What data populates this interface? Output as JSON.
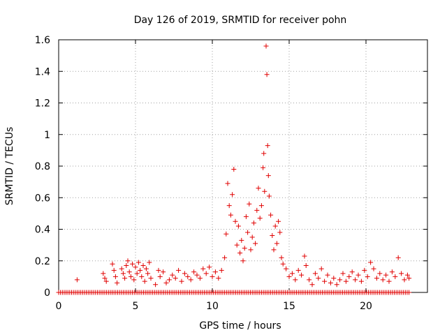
{
  "chart_data": {
    "type": "scatter",
    "title": "Day 126 of 2019, SRMTID for receiver pohn",
    "xlabel": "GPS time / hours",
    "ylabel": "SRMTID / TECUs",
    "xlim": [
      0,
      24
    ],
    "ylim": [
      0,
      1.6
    ],
    "xticks": [
      0,
      5,
      10,
      15,
      20
    ],
    "xtick_labels": [
      "0",
      "5",
      "10",
      "15",
      "20"
    ],
    "yticks": [
      0,
      0.2,
      0.4,
      0.6,
      0.8,
      1.0,
      1.2,
      1.4,
      1.6
    ],
    "ytick_labels": [
      "0",
      "0.2",
      "0.4",
      "0.6",
      "0.8",
      "1",
      "1.2",
      "1.4",
      "1.6"
    ],
    "grid": true,
    "marker": "+",
    "color": "#e00000",
    "series": [
      {
        "name": "SRMTID",
        "points": [
          [
            1.2,
            0.08
          ],
          [
            2.9,
            0.12
          ],
          [
            3.0,
            0.09
          ],
          [
            3.1,
            0.07
          ],
          [
            3.5,
            0.18
          ],
          [
            3.6,
            0.14
          ],
          [
            3.7,
            0.1
          ],
          [
            3.8,
            0.06
          ],
          [
            4.1,
            0.15
          ],
          [
            4.2,
            0.12
          ],
          [
            4.3,
            0.09
          ],
          [
            4.4,
            0.17
          ],
          [
            4.5,
            0.2
          ],
          [
            4.6,
            0.13
          ],
          [
            4.7,
            0.1
          ],
          [
            4.8,
            0.18
          ],
          [
            4.9,
            0.08
          ],
          [
            5.0,
            0.16
          ],
          [
            5.1,
            0.12
          ],
          [
            5.2,
            0.19
          ],
          [
            5.3,
            0.14
          ],
          [
            5.4,
            0.1
          ],
          [
            5.5,
            0.17
          ],
          [
            5.6,
            0.07
          ],
          [
            5.7,
            0.15
          ],
          [
            5.8,
            0.12
          ],
          [
            5.9,
            0.19
          ],
          [
            6.0,
            0.09
          ],
          [
            6.3,
            0.05
          ],
          [
            6.5,
            0.14
          ],
          [
            6.6,
            0.1
          ],
          [
            6.8,
            0.13
          ],
          [
            7.0,
            0.06
          ],
          [
            7.2,
            0.08
          ],
          [
            7.4,
            0.11
          ],
          [
            7.6,
            0.09
          ],
          [
            7.8,
            0.14
          ],
          [
            8.0,
            0.07
          ],
          [
            8.2,
            0.12
          ],
          [
            8.4,
            0.1
          ],
          [
            8.6,
            0.08
          ],
          [
            8.8,
            0.13
          ],
          [
            9.0,
            0.11
          ],
          [
            9.2,
            0.09
          ],
          [
            9.4,
            0.15
          ],
          [
            9.6,
            0.12
          ],
          [
            9.8,
            0.16
          ],
          [
            10.0,
            0.1
          ],
          [
            10.2,
            0.13
          ],
          [
            10.4,
            0.09
          ],
          [
            10.6,
            0.14
          ],
          [
            10.8,
            0.22
          ],
          [
            10.9,
            0.37
          ],
          [
            11.0,
            0.69
          ],
          [
            11.1,
            0.55
          ],
          [
            11.2,
            0.49
          ],
          [
            11.3,
            0.62
          ],
          [
            11.4,
            0.78
          ],
          [
            11.5,
            0.45
          ],
          [
            11.6,
            0.3
          ],
          [
            11.7,
            0.42
          ],
          [
            11.8,
            0.25
          ],
          [
            11.9,
            0.33
          ],
          [
            12.0,
            0.2
          ],
          [
            12.1,
            0.28
          ],
          [
            12.2,
            0.48
          ],
          [
            12.3,
            0.38
          ],
          [
            12.4,
            0.56
          ],
          [
            12.5,
            0.27
          ],
          [
            12.6,
            0.35
          ],
          [
            12.7,
            0.44
          ],
          [
            12.8,
            0.31
          ],
          [
            12.9,
            0.52
          ],
          [
            13.0,
            0.66
          ],
          [
            13.1,
            0.47
          ],
          [
            13.2,
            0.55
          ],
          [
            13.3,
            0.79
          ],
          [
            13.35,
            0.88
          ],
          [
            13.4,
            0.64
          ],
          [
            13.5,
            1.56
          ],
          [
            13.55,
            1.38
          ],
          [
            13.6,
            0.93
          ],
          [
            13.65,
            0.74
          ],
          [
            13.7,
            0.61
          ],
          [
            13.8,
            0.49
          ],
          [
            13.9,
            0.36
          ],
          [
            14.0,
            0.27
          ],
          [
            14.1,
            0.42
          ],
          [
            14.2,
            0.31
          ],
          [
            14.3,
            0.45
          ],
          [
            14.4,
            0.38
          ],
          [
            14.5,
            0.22
          ],
          [
            14.6,
            0.18
          ],
          [
            14.8,
            0.15
          ],
          [
            15.0,
            0.1
          ],
          [
            15.2,
            0.12
          ],
          [
            15.4,
            0.08
          ],
          [
            15.6,
            0.14
          ],
          [
            15.8,
            0.11
          ],
          [
            16.0,
            0.23
          ],
          [
            16.1,
            0.17
          ],
          [
            16.3,
            0.08
          ],
          [
            16.5,
            0.05
          ],
          [
            16.7,
            0.12
          ],
          [
            16.9,
            0.09
          ],
          [
            17.1,
            0.15
          ],
          [
            17.3,
            0.07
          ],
          [
            17.5,
            0.11
          ],
          [
            17.7,
            0.06
          ],
          [
            17.9,
            0.09
          ],
          [
            18.1,
            0.05
          ],
          [
            18.3,
            0.08
          ],
          [
            18.5,
            0.12
          ],
          [
            18.7,
            0.07
          ],
          [
            18.9,
            0.1
          ],
          [
            19.1,
            0.13
          ],
          [
            19.3,
            0.08
          ],
          [
            19.5,
            0.11
          ],
          [
            19.7,
            0.07
          ],
          [
            19.9,
            0.14
          ],
          [
            20.1,
            0.1
          ],
          [
            20.3,
            0.19
          ],
          [
            20.5,
            0.15
          ],
          [
            20.7,
            0.09
          ],
          [
            20.9,
            0.12
          ],
          [
            21.1,
            0.08
          ],
          [
            21.3,
            0.11
          ],
          [
            21.5,
            0.07
          ],
          [
            21.7,
            0.13
          ],
          [
            21.9,
            0.1
          ],
          [
            22.1,
            0.22
          ],
          [
            22.3,
            0.12
          ],
          [
            22.5,
            0.08
          ],
          [
            22.7,
            0.11
          ],
          [
            22.8,
            0.09
          ]
        ]
      }
    ],
    "zero_band": {
      "name": "SRMTID",
      "value": 0,
      "x_range": [
        0,
        22.9
      ],
      "step": 0.12
    }
  }
}
